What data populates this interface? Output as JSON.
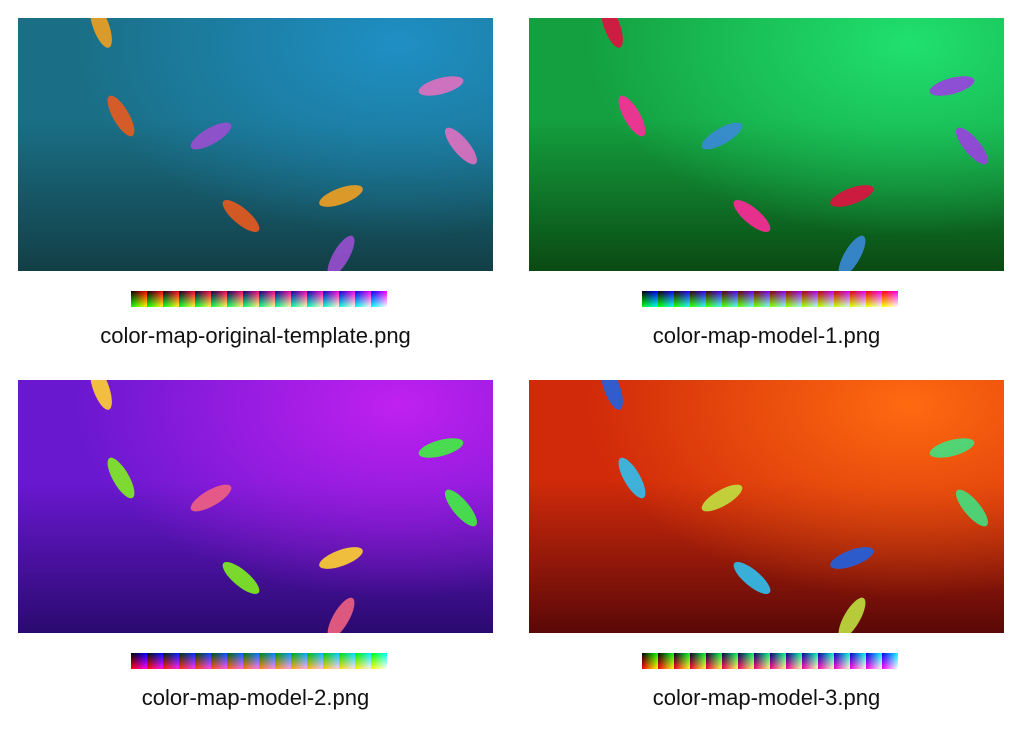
{
  "figures": [
    {
      "caption": "color-map-original-template.png",
      "colors": {
        "top": "#1f8fc4",
        "mid": "#1a6f86",
        "bottom": "#123f46",
        "fish": [
          "#e85a1e",
          "#9a4fd0",
          "#f0a020",
          "#e070c0"
        ]
      },
      "map": {
        "x": "r",
        "y": "g",
        "tile": "b"
      }
    },
    {
      "caption": "color-map-model-1.png",
      "colors": {
        "top": "#20e070",
        "mid": "#14a040",
        "bottom": "#0a4a12",
        "fish": [
          "#ff2a9a",
          "#3a8ad8",
          "#e01040",
          "#9a40e0"
        ]
      },
      "map": {
        "x": "b",
        "y": "g",
        "tile": "r"
      }
    },
    {
      "caption": "color-map-model-2.png",
      "colors": {
        "top": "#c020f0",
        "mid": "#6a18d0",
        "bottom": "#2a0a70",
        "fish": [
          "#80f020",
          "#f06080",
          "#ffd030",
          "#40f040"
        ]
      },
      "map": {
        "x": "b",
        "y": "r",
        "tile": "g"
      }
    },
    {
      "caption": "color-map-model-3.png",
      "colors": {
        "top": "#ff6a10",
        "mid": "#d02a0a",
        "bottom": "#5a0808",
        "fish": [
          "#30c0f0",
          "#c0e040",
          "#2060e0",
          "#40e080"
        ]
      },
      "map": {
        "x": "g",
        "y": "r",
        "tile": "b"
      }
    }
  ]
}
